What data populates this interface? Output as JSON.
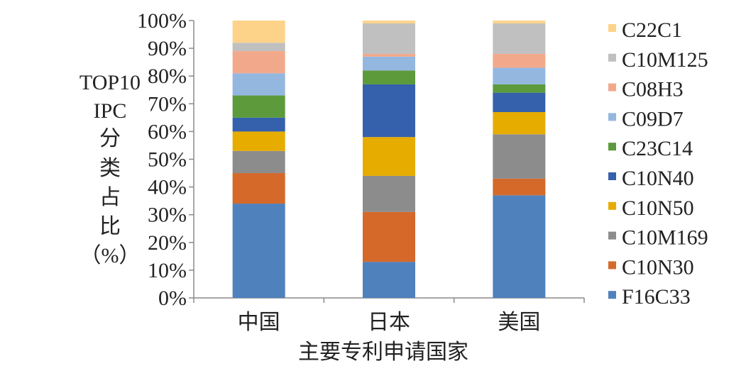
{
  "chart_data": {
    "type": "bar",
    "stacked": true,
    "categories": [
      "中国",
      "日本",
      "美国"
    ],
    "xlabel": "主要专利申请国家",
    "ylabel": "TOP10 IPC 分类占比（%）",
    "ylim": [
      0,
      100
    ],
    "yticks": [
      "0%",
      "10%",
      "20%",
      "30%",
      "40%",
      "50%",
      "60%",
      "70%",
      "80%",
      "90%",
      "100%"
    ],
    "legend_position": "right",
    "series": [
      {
        "name": "F16C33",
        "color": "#4F81BD",
        "values": [
          34,
          13,
          37
        ]
      },
      {
        "name": "C10N30",
        "color": "#D4692A",
        "values": [
          11,
          18,
          6
        ]
      },
      {
        "name": "C10M169",
        "color": "#8C8C8C",
        "values": [
          8,
          13,
          16
        ]
      },
      {
        "name": "C10N50",
        "color": "#E6AC00",
        "values": [
          7,
          14,
          8
        ]
      },
      {
        "name": "C10N40",
        "color": "#3560AC",
        "values": [
          5,
          19,
          7
        ]
      },
      {
        "name": "C23C14",
        "color": "#5C9A3C",
        "values": [
          8,
          5,
          3
        ]
      },
      {
        "name": "C09D7",
        "color": "#94B7E0",
        "values": [
          8,
          5,
          6
        ]
      },
      {
        "name": "C08H3",
        "color": "#F2A98B",
        "values": [
          8,
          1,
          5
        ]
      },
      {
        "name": "C10M125",
        "color": "#C0C0C0",
        "values": [
          3,
          11,
          11
        ]
      },
      {
        "name": "C22C1",
        "color": "#FDD389",
        "values": [
          8,
          1,
          1
        ]
      }
    ]
  }
}
